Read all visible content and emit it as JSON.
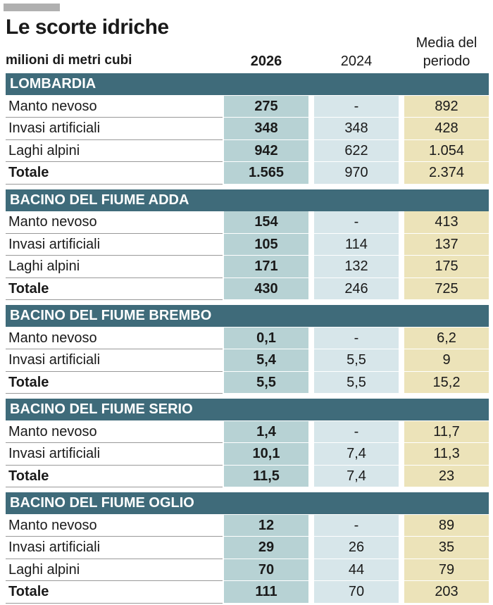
{
  "header": {
    "title": "Le scorte idriche",
    "unit": "milioni di metri cubi"
  },
  "columns": [
    "2026",
    "2024",
    "Media del periodo"
  ],
  "sections": [
    {
      "name": "LOMBARDIA",
      "rows": [
        [
          "Manto nevoso",
          "275",
          "-",
          "892"
        ],
        [
          "Invasi artificiali",
          "348",
          "348",
          "428"
        ],
        [
          "Laghi alpini",
          "942",
          "622",
          "1.054"
        ],
        [
          "Totale",
          "1.565",
          "970",
          "2.374"
        ]
      ]
    },
    {
      "name": "BACINO DEL FIUME ADDA",
      "rows": [
        [
          "Manto nevoso",
          "154",
          "-",
          "413"
        ],
        [
          "Invasi artificiali",
          "105",
          "114",
          "137"
        ],
        [
          "Laghi alpini",
          "171",
          "132",
          "175"
        ],
        [
          "Totale",
          "430",
          "246",
          "725"
        ]
      ]
    },
    {
      "name": "BACINO DEL FIUME BREMBO",
      "rows": [
        [
          "Manto nevoso",
          "0,1",
          "-",
          "6,2"
        ],
        [
          "Invasi artificiali",
          "5,4",
          "5,5",
          "9"
        ],
        [
          "Totale",
          "5,5",
          "5,5",
          "15,2"
        ]
      ]
    },
    {
      "name": "BACINO DEL FIUME SERIO",
      "rows": [
        [
          "Manto nevoso",
          "1,4",
          "-",
          "11,7"
        ],
        [
          "Invasi artificiali",
          "10,1",
          "7,4",
          "11,3"
        ],
        [
          "Totale",
          "11,5",
          "7,4",
          "23"
        ]
      ]
    },
    {
      "name": "BACINO DEL FIUME OGLIO",
      "rows": [
        [
          "Manto nevoso",
          "12",
          "-",
          "89"
        ],
        [
          "Invasi artificiali",
          "29",
          "26",
          "35"
        ],
        [
          "Laghi alpini",
          "70",
          "44",
          "79"
        ],
        [
          "Totale",
          "111",
          "70",
          "203"
        ]
      ]
    }
  ]
}
